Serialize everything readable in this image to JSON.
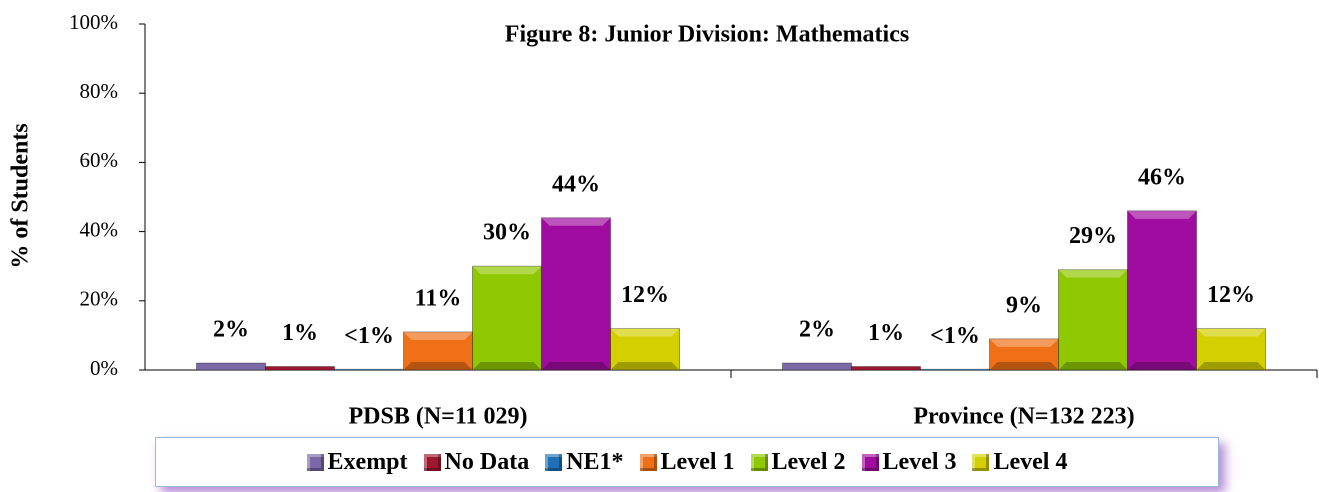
{
  "chart_data": {
    "type": "bar",
    "title": "Figure 8:  Junior Division:  Mathematics",
    "y_label": "% of Students",
    "categories": [
      "PDSB (N=11 029)",
      "Province (N=132 223)"
    ],
    "series": [
      {
        "name": "Exempt",
        "color": "#7b68a6",
        "values": [
          2,
          2
        ],
        "value_labels": [
          "2%",
          "2%"
        ]
      },
      {
        "name": "No Data",
        "color": "#a01830",
        "values": [
          1,
          1
        ],
        "value_labels": [
          "1%",
          "1%"
        ]
      },
      {
        "name": "NE1*",
        "color": "#2070b8",
        "values": [
          0.2,
          0.2
        ],
        "value_labels": [
          "<1%",
          "<1%"
        ]
      },
      {
        "name": "Level 1",
        "color": "#f07018",
        "values": [
          11,
          9
        ],
        "value_labels": [
          "11%",
          "9%"
        ]
      },
      {
        "name": "Level 2",
        "color": "#90c800",
        "values": [
          30,
          29
        ],
        "value_labels": [
          "30%",
          "29%"
        ]
      },
      {
        "name": "Level 3",
        "color": "#a00ca0",
        "values": [
          44,
          46
        ],
        "value_labels": [
          "44%",
          "46%"
        ]
      },
      {
        "name": "Level 4",
        "color": "#d4d000",
        "values": [
          12,
          12
        ],
        "value_labels": [
          "12%",
          "12%"
        ]
      }
    ],
    "ylim": [
      0,
      100
    ],
    "yticks": [
      {
        "value": 0,
        "label": "0%"
      },
      {
        "value": 20,
        "label": "20%"
      },
      {
        "value": 40,
        "label": "40%"
      },
      {
        "value": 60,
        "label": "60%"
      },
      {
        "value": 80,
        "label": "80%"
      },
      {
        "value": 100,
        "label": "100%"
      }
    ],
    "legend": "bottom"
  }
}
